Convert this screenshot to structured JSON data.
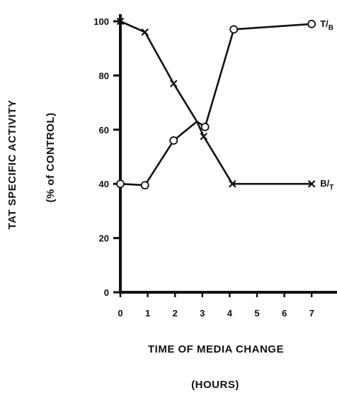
{
  "chart_data": {
    "type": "line",
    "xlabel": "TIME OF MEDIA CHANGE",
    "xlabel_units": "(HOURS)",
    "ylabel": "TAT SPECIFIC ACTIVITY",
    "ylabel_units": "(% of CONTROL)",
    "xlim": [
      0,
      7
    ],
    "ylim": [
      0,
      100
    ],
    "x_ticks": [
      0,
      1,
      2,
      3,
      4,
      5,
      6,
      7
    ],
    "y_ticks": [
      0,
      20,
      40,
      60,
      80,
      100
    ],
    "grid": false,
    "series": [
      {
        "name": "T/B",
        "marker": "circle",
        "color": "#111111",
        "x": [
          0,
          0.9,
          1.95,
          2.8,
          3.1,
          4.15,
          7
        ],
        "y": [
          40,
          39.5,
          56,
          63,
          61,
          97,
          99
        ]
      },
      {
        "name": "B/T",
        "marker": "x",
        "color": "#111111",
        "x": [
          0,
          0.9,
          1.95,
          2.8,
          3.05,
          4.1,
          7
        ],
        "y": [
          100,
          96,
          77,
          63,
          57.5,
          40,
          40
        ]
      }
    ]
  }
}
